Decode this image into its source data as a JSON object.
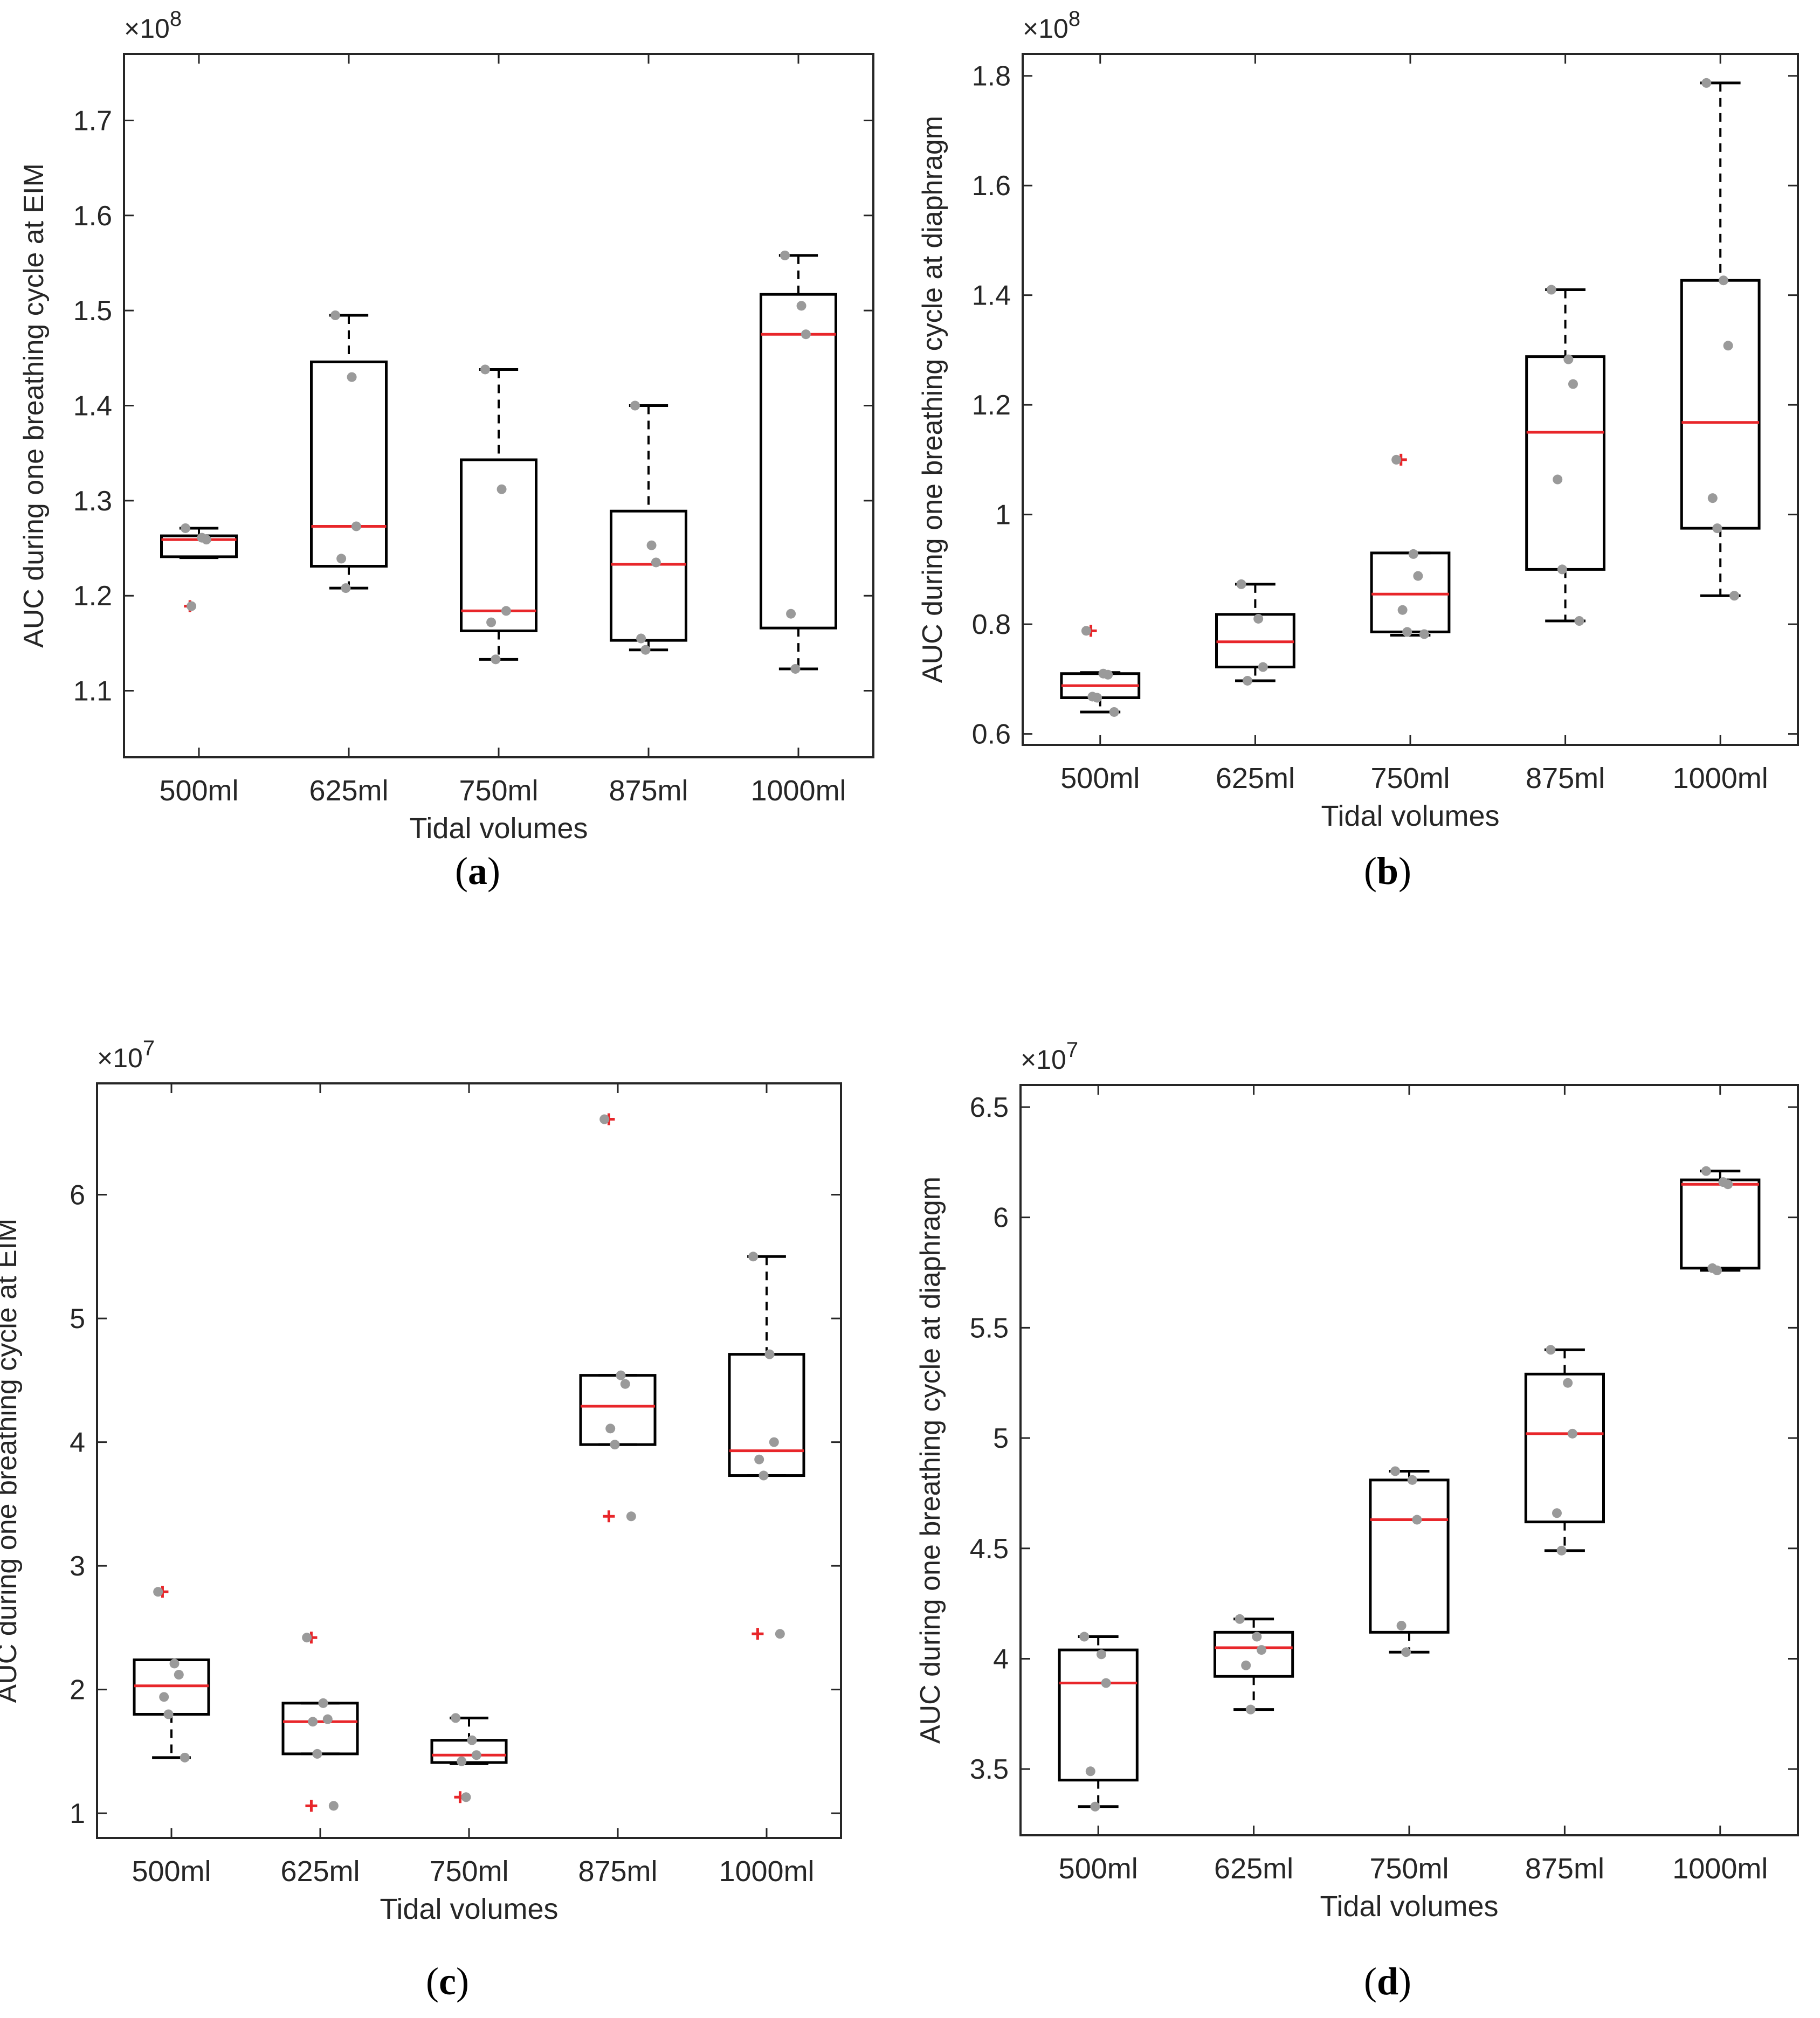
{
  "figure": {
    "panels": [
      {
        "id": "a",
        "label_open": "(",
        "letter": "a",
        "label_close": ")"
      },
      {
        "id": "b",
        "label_open": "(",
        "letter": "b",
        "label_close": ")"
      },
      {
        "id": "c",
        "label_open": "(",
        "letter": "c",
        "label_close": ")"
      },
      {
        "id": "d",
        "label_open": "(",
        "letter": "d",
        "label_close": ")"
      }
    ]
  },
  "chart_data": [
    {
      "id": "a",
      "type": "boxplot",
      "xlabel": "Tidal volumes",
      "ylabel": "AUC during one breathing cycle at EIM",
      "exponent_label": "×10",
      "exponent_power": "8",
      "categories": [
        "500ml",
        "625ml",
        "750ml",
        "875ml",
        "1000ml"
      ],
      "ylim": [
        1.03,
        1.77
      ],
      "yticks": [
        1.1,
        1.2,
        1.3,
        1.4,
        1.5,
        1.6,
        1.7
      ],
      "ytick_labels": [
        "1.1",
        "1.2",
        "1.3",
        "1.4",
        "1.5",
        "1.6",
        "1.7"
      ],
      "boxes": [
        {
          "whisker_low": 1.24,
          "q1": 1.241,
          "median": 1.259,
          "q3": 1.263,
          "whisker_high": 1.271,
          "outliers": [
            1.189
          ],
          "points": [
            1.271,
            1.261,
            1.259,
            1.189
          ]
        },
        {
          "whisker_low": 1.208,
          "q1": 1.231,
          "median": 1.273,
          "q3": 1.446,
          "whisker_high": 1.495,
          "outliers": [],
          "points": [
            1.495,
            1.43,
            1.273,
            1.239,
            1.208
          ]
        },
        {
          "whisker_low": 1.133,
          "q1": 1.163,
          "median": 1.184,
          "q3": 1.343,
          "whisker_high": 1.438,
          "outliers": [],
          "points": [
            1.438,
            1.312,
            1.184,
            1.172,
            1.133
          ]
        },
        {
          "whisker_low": 1.143,
          "q1": 1.153,
          "median": 1.233,
          "q3": 1.289,
          "whisker_high": 1.4,
          "outliers": [],
          "points": [
            1.4,
            1.253,
            1.235,
            1.155,
            1.143
          ]
        },
        {
          "whisker_low": 1.123,
          "q1": 1.166,
          "median": 1.475,
          "q3": 1.517,
          "whisker_high": 1.558,
          "outliers": [],
          "points": [
            1.558,
            1.505,
            1.475,
            1.181,
            1.123
          ]
        }
      ]
    },
    {
      "id": "b",
      "type": "boxplot",
      "xlabel": "Tidal volumes",
      "ylabel": "AUC during one breathing cycle at diaphragm",
      "exponent_label": "×10",
      "exponent_power": "8",
      "categories": [
        "500ml",
        "625ml",
        "750ml",
        "875ml",
        "1000ml"
      ],
      "ylim": [
        0.58,
        1.84
      ],
      "yticks": [
        0.6,
        0.8,
        1.0,
        1.2,
        1.4,
        1.6,
        1.8
      ],
      "ytick_labels": [
        "0.6",
        "0.8",
        "1",
        "1.2",
        "1.4",
        "1.6",
        "1.8"
      ],
      "boxes": [
        {
          "whisker_low": 0.64,
          "q1": 0.666,
          "median": 0.688,
          "q3": 0.71,
          "whisker_high": 0.712,
          "outliers": [
            0.788
          ],
          "points": [
            0.788,
            0.71,
            0.708,
            0.668,
            0.666,
            0.64
          ]
        },
        {
          "whisker_low": 0.697,
          "q1": 0.722,
          "median": 0.768,
          "q3": 0.818,
          "whisker_high": 0.873,
          "outliers": [],
          "points": [
            0.873,
            0.81,
            0.722,
            0.697
          ]
        },
        {
          "whisker_low": 0.78,
          "q1": 0.786,
          "median": 0.855,
          "q3": 0.93,
          "whisker_high": 0.93,
          "outliers": [
            1.1
          ],
          "points": [
            1.1,
            0.928,
            0.888,
            0.826,
            0.786,
            0.782
          ]
        },
        {
          "whisker_low": 0.806,
          "q1": 0.9,
          "median": 1.15,
          "q3": 1.288,
          "whisker_high": 1.41,
          "outliers": [],
          "points": [
            1.41,
            1.283,
            1.238,
            1.064,
            0.9,
            0.806
          ]
        },
        {
          "whisker_low": 0.852,
          "q1": 0.975,
          "median": 1.168,
          "q3": 1.427,
          "whisker_high": 1.787,
          "outliers": [],
          "points": [
            1.787,
            1.427,
            1.308,
            1.03,
            0.975,
            0.852
          ]
        }
      ]
    },
    {
      "id": "c",
      "type": "boxplot",
      "xlabel": "Tidal volumes",
      "ylabel": "AUC during one breathing cycle at EIM",
      "exponent_label": "×10",
      "exponent_power": "7",
      "categories": [
        "500ml",
        "625ml",
        "750ml",
        "875ml",
        "1000ml"
      ],
      "ylim": [
        0.8,
        6.9
      ],
      "yticks": [
        1,
        2,
        3,
        4,
        5,
        6
      ],
      "ytick_labels": [
        "1",
        "2",
        "3",
        "4",
        "5",
        "6"
      ],
      "boxes": [
        {
          "whisker_low": 1.45,
          "q1": 1.8,
          "median": 2.03,
          "q3": 2.24,
          "whisker_high": 2.24,
          "outliers": [
            2.79
          ],
          "points": [
            2.79,
            2.21,
            2.12,
            1.94,
            1.8,
            1.45
          ]
        },
        {
          "whisker_low": 1.48,
          "q1": 1.48,
          "median": 1.74,
          "q3": 1.89,
          "whisker_high": 1.89,
          "outliers": [
            2.42,
            1.06
          ],
          "points": [
            2.42,
            1.89,
            1.76,
            1.74,
            1.48,
            1.06
          ]
        },
        {
          "whisker_low": 1.4,
          "q1": 1.41,
          "median": 1.47,
          "q3": 1.59,
          "whisker_high": 1.77,
          "outliers": [
            1.13
          ],
          "points": [
            1.77,
            1.59,
            1.47,
            1.42,
            1.13
          ]
        },
        {
          "whisker_low": 3.98,
          "q1": 3.98,
          "median": 4.29,
          "q3": 4.54,
          "whisker_high": 4.54,
          "outliers": [
            6.61,
            3.4
          ],
          "points": [
            6.61,
            4.54,
            4.47,
            4.11,
            3.98,
            3.4
          ]
        },
        {
          "whisker_low": 3.73,
          "q1": 3.73,
          "median": 3.93,
          "q3": 4.71,
          "whisker_high": 5.5,
          "outliers": [
            2.45
          ],
          "points": [
            5.5,
            4.71,
            4.0,
            3.86,
            3.73,
            2.45
          ]
        }
      ]
    },
    {
      "id": "d",
      "type": "boxplot",
      "xlabel": "Tidal volumes",
      "ylabel": "AUC during one breathing cycle at diaphragm",
      "exponent_label": "×10",
      "exponent_power": "7",
      "categories": [
        "500ml",
        "625ml",
        "750ml",
        "875ml",
        "1000ml"
      ],
      "ylim": [
        3.2,
        6.6
      ],
      "yticks": [
        3.5,
        4.0,
        4.5,
        5.0,
        5.5,
        6.0,
        6.5
      ],
      "ytick_labels": [
        "3.5",
        "4",
        "4.5",
        "5",
        "5.5",
        "6",
        "6.5"
      ],
      "boxes": [
        {
          "whisker_low": 3.33,
          "q1": 3.45,
          "median": 3.89,
          "q3": 4.04,
          "whisker_high": 4.1,
          "outliers": [],
          "points": [
            4.1,
            4.02,
            3.89,
            3.49,
            3.33
          ]
        },
        {
          "whisker_low": 3.77,
          "q1": 3.92,
          "median": 4.05,
          "q3": 4.12,
          "whisker_high": 4.18,
          "outliers": [],
          "points": [
            4.18,
            4.1,
            4.04,
            3.97,
            3.77
          ]
        },
        {
          "whisker_low": 4.03,
          "q1": 4.12,
          "median": 4.63,
          "q3": 4.81,
          "whisker_high": 4.85,
          "outliers": [],
          "points": [
            4.85,
            4.81,
            4.63,
            4.15,
            4.03
          ]
        },
        {
          "whisker_low": 4.49,
          "q1": 4.62,
          "median": 5.02,
          "q3": 5.29,
          "whisker_high": 5.4,
          "outliers": [],
          "points": [
            5.4,
            5.25,
            5.02,
            4.66,
            4.49
          ]
        },
        {
          "whisker_low": 5.76,
          "q1": 5.77,
          "median": 6.15,
          "q3": 6.17,
          "whisker_high": 6.21,
          "outliers": [],
          "points": [
            6.21,
            6.16,
            6.15,
            5.77,
            5.76
          ]
        }
      ]
    }
  ]
}
